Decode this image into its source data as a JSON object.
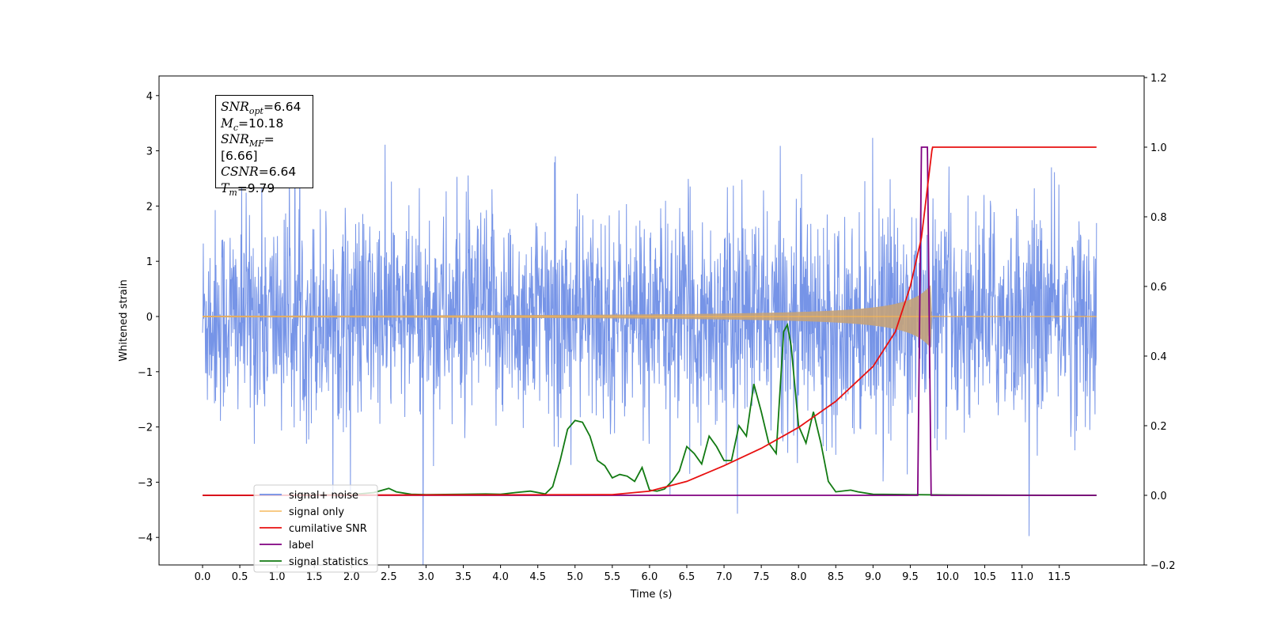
{
  "chart_data": {
    "type": "line",
    "xlabel": "Time (s)",
    "ylabel": "Whitened strain",
    "xlim": [
      -0.6,
      12.6
    ],
    "ylim": [
      -4.5,
      4.35
    ],
    "y2lim": [
      -0.2,
      1.2
    ],
    "x_ticks": [
      "0.0",
      "0.5",
      "1.0",
      "1.5",
      "2.0",
      "2.5",
      "3.0",
      "3.5",
      "4.0",
      "4.5",
      "5.0",
      "5.5",
      "6.0",
      "6.5",
      "7.0",
      "7.5",
      "8.0",
      "8.5",
      "9.0",
      "9.5",
      "10.0",
      "10.5",
      "11.0",
      "11.5"
    ],
    "y_ticks": [
      "−4",
      "−3",
      "−2",
      "−1",
      "0",
      "1",
      "2",
      "3",
      "4"
    ],
    "y2_ticks": [
      "−0.2",
      "0.0",
      "0.2",
      "0.4",
      "0.6",
      "0.8",
      "1.0",
      "1.2"
    ],
    "legend_position": "lower-left",
    "annotation": {
      "snr_opt": {
        "sym": "SNR",
        "sub": "opt",
        "value": "=6.64"
      },
      "mc": {
        "sym": "M",
        "sub": "c",
        "value": "=10.18"
      },
      "snr_mf": {
        "sym": "SNR",
        "sub": "MF",
        "value": "=[6.66]"
      },
      "csnr": {
        "sym": "CSNR",
        "value": "=6.64"
      },
      "tm": {
        "sym": "T",
        "sub": "m",
        "value": "=9.79"
      }
    },
    "series": [
      {
        "name": "signal+ noise",
        "color": "#6f8ee6",
        "axis": "left",
        "time_range": [
          0,
          12
        ],
        "std": 0.95
      },
      {
        "name": "signal only",
        "color": "#f5b553",
        "axis": "left",
        "chirp_end": 9.79,
        "amp_at_end": 0.6
      },
      {
        "name": "cumilative SNR",
        "color": "#e81010",
        "axis": "right",
        "x": [
          0,
          5.5,
          6.0,
          6.5,
          7.0,
          7.5,
          8.0,
          8.5,
          9.0,
          9.3,
          9.5,
          9.65,
          9.79,
          9.8,
          12.0
        ],
        "y": [
          0,
          0.002,
          0.012,
          0.04,
          0.085,
          0.135,
          0.195,
          0.27,
          0.37,
          0.47,
          0.6,
          0.74,
          0.99,
          1.0,
          1.0
        ]
      },
      {
        "name": "label",
        "color": "#800080",
        "axis": "right",
        "x": [
          0,
          9.6,
          9.65,
          9.73,
          9.78,
          12.0
        ],
        "y": [
          0,
          0,
          1.0,
          1.0,
          0,
          0
        ]
      },
      {
        "name": "signal statistics",
        "color": "#127a12",
        "axis": "right",
        "x": [
          0,
          1,
          2,
          2.3,
          2.5,
          2.6,
          2.8,
          3.0,
          3.5,
          3.8,
          4.0,
          4.2,
          4.4,
          4.6,
          4.7,
          4.8,
          4.9,
          5.0,
          5.1,
          5.2,
          5.3,
          5.4,
          5.5,
          5.6,
          5.7,
          5.8,
          5.9,
          6.0,
          6.1,
          6.2,
          6.3,
          6.4,
          6.5,
          6.6,
          6.7,
          6.8,
          6.9,
          7.0,
          7.1,
          7.2,
          7.3,
          7.4,
          7.5,
          7.6,
          7.7,
          7.8,
          7.85,
          7.9,
          8.0,
          8.1,
          8.2,
          8.3,
          8.4,
          8.5,
          8.7,
          8.8,
          9.0,
          9.5,
          10.0,
          12.0
        ],
        "y": [
          0,
          0,
          0.002,
          0.008,
          0.02,
          0.01,
          0.003,
          0.002,
          0.003,
          0.004,
          0.003,
          0.008,
          0.012,
          0.004,
          0.025,
          0.1,
          0.19,
          0.215,
          0.21,
          0.17,
          0.1,
          0.085,
          0.05,
          0.06,
          0.055,
          0.04,
          0.08,
          0.015,
          0.012,
          0.018,
          0.04,
          0.07,
          0.14,
          0.12,
          0.09,
          0.17,
          0.14,
          0.1,
          0.1,
          0.2,
          0.17,
          0.32,
          0.24,
          0.15,
          0.12,
          0.47,
          0.49,
          0.43,
          0.2,
          0.15,
          0.24,
          0.15,
          0.04,
          0.01,
          0.015,
          0.01,
          0.003,
          0.002,
          0.001,
          0
        ]
      }
    ]
  }
}
